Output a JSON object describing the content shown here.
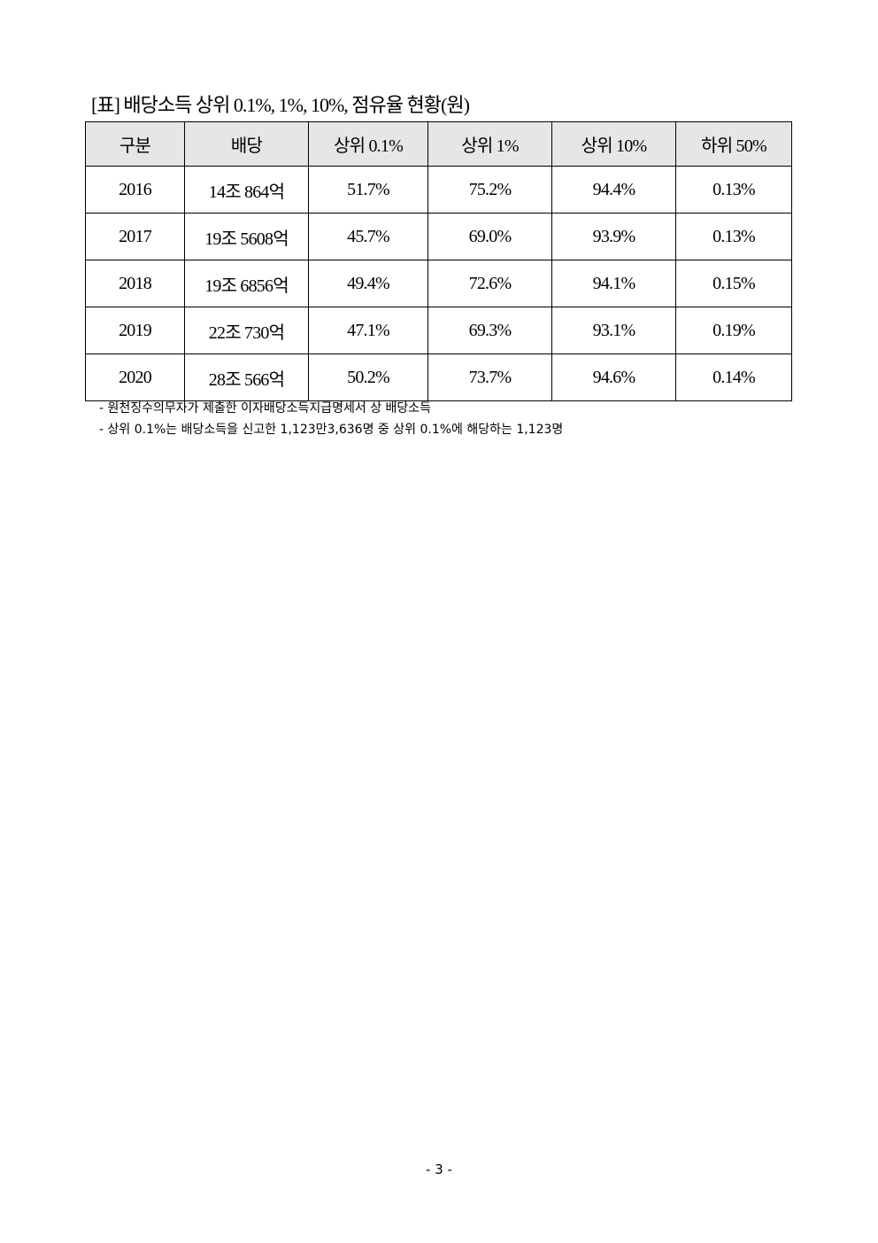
{
  "title": "[표] 배당소득 상위 0.1%, 1%, 10%, 점유율 현황(원)",
  "table": {
    "headers": [
      "구분",
      "배당",
      "상위 0.1%",
      "상위 1%",
      "상위 10%",
      "하위 50%"
    ],
    "rows": [
      [
        "2016",
        "14조 864억",
        "51.7%",
        "75.2%",
        "94.4%",
        "0.13%"
      ],
      [
        "2017",
        "19조 5608억",
        "45.7%",
        "69.0%",
        "93.9%",
        "0.13%"
      ],
      [
        "2018",
        "19조 6856억",
        "49.4%",
        "72.6%",
        "94.1%",
        "0.15%"
      ],
      [
        "2019",
        "22조 730억",
        "47.1%",
        "69.3%",
        "93.1%",
        "0.19%"
      ],
      [
        "2020",
        "28조 566억",
        "50.2%",
        "73.7%",
        "94.6%",
        "0.14%"
      ]
    ]
  },
  "notes": [
    "- 원천징수의무자가 제출한 이자배당소득지급명세서 상 배당소득",
    "- 상위 0.1%는 배당소득을 신고한 1,123만3,636명 중 상위 0.1%에 해당하는 1,123명"
  ],
  "page_number": "- 3 -"
}
